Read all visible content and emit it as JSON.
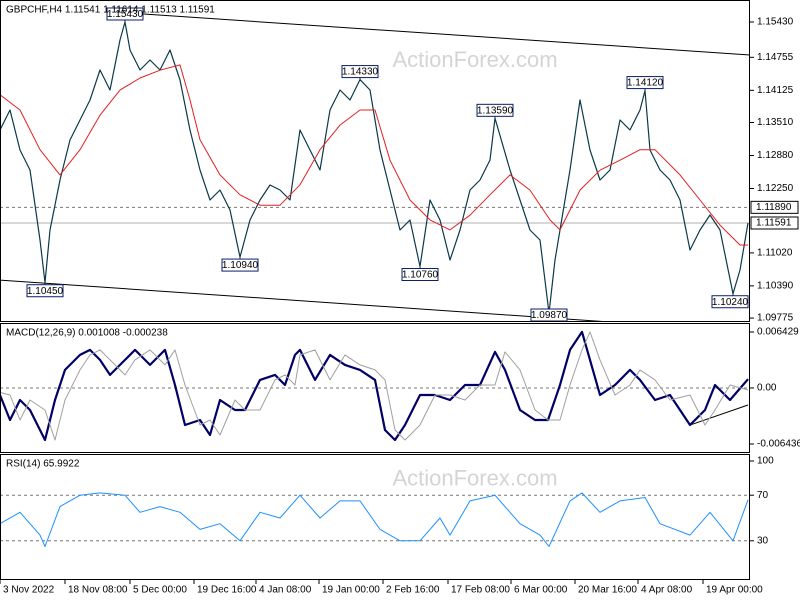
{
  "chart_data": [
    {
      "type": "line",
      "title": "GBPCHF,H4  1.11541 1.11614 1.11513 1.11591",
      "watermark": "ActionForex.com",
      "xlim": [
        0,
        750
      ],
      "ylim": [
        1.097,
        1.1585
      ],
      "yticks": [
        {
          "value": 1.1543,
          "label": "1.15430"
        },
        1.14755,
        1.14125,
        {
          "value": 1.1351,
          "label": "1.13510"
        },
        {
          "value": 1.1288,
          "label": "1.12880"
        },
        {
          "value": 1.1225,
          "label": "1.12250"
        },
        {
          "value": 1.1102,
          "label": "1.11020"
        },
        {
          "value": 1.1039,
          "label": "1.10390"
        },
        1.09775
      ],
      "series": [
        {
          "color": "#0b3a4a",
          "width": 1.2,
          "x": [
            0,
            10,
            20,
            30,
            40,
            45,
            50,
            60,
            70,
            80,
            90,
            100,
            110,
            120,
            125,
            130,
            140,
            150,
            160,
            170,
            180,
            190,
            200,
            210,
            220,
            230,
            240,
            250,
            260,
            270,
            280,
            290,
            300,
            310,
            320,
            330,
            340,
            350,
            360,
            370,
            380,
            390,
            400,
            410,
            420,
            430,
            440,
            450,
            460,
            470,
            480,
            490,
            495,
            510,
            520,
            530,
            540,
            549,
            555,
            560,
            570,
            580,
            590,
            600,
            610,
            620,
            630,
            640,
            645,
            650,
            660,
            670,
            680,
            690,
            700,
            710,
            720,
            733,
            740,
            748
          ],
          "values": [
            1.13367,
            1.13749,
            1.12985,
            1.12603,
            1.11266,
            1.1045,
            1.11457,
            1.12412,
            1.13176,
            1.13558,
            1.1394,
            1.14513,
            1.14131,
            1.15086,
            1.1543,
            1.14895,
            1.14513,
            1.14704,
            1.14513,
            1.14895,
            1.14322,
            1.13367,
            1.12603,
            1.1203,
            1.12222,
            1.11839,
            1.1094,
            1.11648,
            1.1203,
            1.12317,
            1.12222,
            1.1203,
            1.13367,
            1.12985,
            1.12603,
            1.13749,
            1.14131,
            1.1394,
            1.1433,
            1.14131,
            1.12985,
            1.12222,
            1.11457,
            1.11648,
            1.1076,
            1.1203,
            1.11648,
            1.10884,
            1.11457,
            1.12222,
            1.12412,
            1.12794,
            1.1359,
            1.12603,
            1.1203,
            1.11457,
            1.11266,
            1.0987,
            1.10884,
            1.11457,
            1.12603,
            1.1394,
            1.12985,
            1.12412,
            1.12603,
            1.13558,
            1.13367,
            1.13749,
            1.1412,
            1.12985,
            1.12603,
            1.12412,
            1.1203,
            1.11075,
            1.11457,
            1.11744,
            1.11457,
            1.1024,
            1.10693,
            1.11591
          ]
        },
        {
          "color": "#e02020",
          "width": 1,
          "x": [
            0,
            20,
            40,
            60,
            80,
            100,
            120,
            140,
            160,
            180,
            190,
            200,
            220,
            240,
            260,
            280,
            300,
            320,
            340,
            360,
            375,
            390,
            410,
            430,
            450,
            470,
            490,
            510,
            530,
            550,
            560,
            580,
            600,
            620,
            640,
            655,
            680,
            700,
            720,
            740,
            748
          ],
          "values": [
            1.1404,
            1.1375,
            1.1299,
            1.1251,
            1.1299,
            1.1365,
            1.1413,
            1.1436,
            1.1451,
            1.1461,
            1.1394,
            1.1318,
            1.1251,
            1.1213,
            1.1193,
            1.1193,
            1.1232,
            1.1299,
            1.1346,
            1.1375,
            1.1375,
            1.1279,
            1.1203,
            1.1165,
            1.1146,
            1.1174,
            1.1213,
            1.1251,
            1.1222,
            1.1165,
            1.1146,
            1.1222,
            1.126,
            1.1279,
            1.1299,
            1.1299,
            1.1251,
            1.1203,
            1.1155,
            1.1117,
            1.1117
          ]
        }
      ],
      "trendlines": [
        {
          "x": [
            115,
            750
          ],
          "values": [
            1.1562,
            1.148
          ]
        },
        {
          "x": [
            0,
            610
          ],
          "values": [
            1.105,
            1.097
          ]
        }
      ],
      "levels": [
        {
          "value": 1.1189,
          "label": "1.11890",
          "line": "dashed",
          "tag": true
        },
        {
          "value": 1.11591,
          "line": "solid",
          "tag": true
        }
      ],
      "annotations": [
        {
          "x": 125,
          "value": 1.1543,
          "label": "1.15430"
        },
        {
          "x": 45,
          "value": 1.1045,
          "label": "1.10450"
        },
        {
          "x": 240,
          "value": 1.1094,
          "label": "1.10940"
        },
        {
          "x": 360,
          "value": 1.1433,
          "label": "1.14330"
        },
        {
          "x": 420,
          "value": 1.1076,
          "label": "1.10760"
        },
        {
          "x": 495,
          "value": 1.1359,
          "label": "1.13590"
        },
        {
          "x": 549,
          "value": 1.0987,
          "label": "1.09870"
        },
        {
          "x": 645,
          "value": 1.1412,
          "label": "1.14120"
        },
        {
          "x": 733,
          "value": 1.1024,
          "label": "1.10240"
        }
      ]
    },
    {
      "type": "line",
      "title": "MACD(12,26,9) 0.001008 -0.000238",
      "xlim": [
        0,
        750
      ],
      "ylim": [
        -0.00747,
        0.00746
      ],
      "yticks": [
        0.006429,
        {
          "value": 0,
          "label": "0.00"
        },
        -0.006436
      ],
      "series": [
        {
          "color": "#000066",
          "width": 2.2,
          "x": [
            0,
            10,
            20,
            30,
            45,
            55,
            65,
            80,
            90,
            100,
            110,
            125,
            135,
            150,
            165,
            175,
            185,
            200,
            210,
            220,
            235,
            245,
            260,
            275,
            285,
            295,
            300,
            315,
            330,
            345,
            360,
            375,
            385,
            395,
            405,
            420,
            435,
            450,
            465,
            480,
            495,
            505,
            520,
            535,
            548,
            560,
            570,
            582,
            590,
            600,
            615,
            630,
            640,
            655,
            670,
            690,
            705,
            715,
            730,
            748
          ],
          "values": [
            -0.000805,
            -0.00368,
            -0.00138,
            -0.00253,
            -0.00598,
            -0.00138,
            0.00207,
            0.0038,
            0.00437,
            0.00322,
            0.0015,
            0.00322,
            0.00437,
            0.00265,
            0.00437,
            0.000345,
            -0.004255,
            -0.00368,
            -0.005405,
            -0.00138,
            -0.00253,
            -0.00253,
            0.00092,
            0.0015,
            0.000345,
            0.0038,
            0.00437,
            0.00092,
            0.0038,
            0.00265,
            0.00207,
            0.00092,
            -0.00483,
            -0.00598,
            -0.004255,
            -0.000805,
            -0.000805,
            -0.00138,
            0.000345,
            0.000345,
            0.00414,
            0.00207,
            -0.00253,
            -0.00368,
            -0.00368,
            0.000345,
            0.00437,
            0.00644,
            0.00322,
            -0.000805,
            0.000345,
            0.00207,
            0.00092,
            -0.00138,
            -0.000805,
            -0.004255,
            -0.00253,
            0.000345,
            -0.00138,
            0.001008
          ]
        },
        {
          "color": "#a0a0a0",
          "width": 1,
          "x": [
            0,
            10,
            20,
            30,
            45,
            55,
            65,
            80,
            90,
            100,
            110,
            125,
            135,
            150,
            165,
            175,
            185,
            200,
            210,
            220,
            235,
            245,
            260,
            275,
            285,
            295,
            300,
            315,
            330,
            345,
            360,
            375,
            385,
            395,
            405,
            420,
            435,
            450,
            465,
            480,
            495,
            505,
            520,
            535,
            548,
            560,
            570,
            582,
            590,
            600,
            615,
            630,
            640,
            655,
            670,
            690,
            705,
            715,
            730,
            748
          ],
          "values": [
            -0.0005,
            -0.000805,
            -0.00368,
            -0.00138,
            -0.00253,
            -0.00598,
            -0.00138,
            0.00207,
            0.0038,
            0.00437,
            0.00322,
            0.0015,
            0.00322,
            0.00437,
            0.00265,
            0.00437,
            0.000345,
            -0.004255,
            -0.00368,
            -0.005405,
            -0.00138,
            -0.00253,
            -0.00253,
            0.00092,
            0.0015,
            0.000345,
            0.0038,
            0.00437,
            0.00092,
            0.0038,
            0.00265,
            0.00207,
            0.00092,
            -0.00483,
            -0.00598,
            -0.004255,
            -0.000805,
            -0.000805,
            -0.00138,
            0.000345,
            0.000345,
            0.00414,
            0.00207,
            -0.00253,
            -0.00368,
            -0.00368,
            0.000345,
            0.00437,
            0.00644,
            0.00322,
            -0.000805,
            0.000345,
            0.00207,
            0.00092,
            -0.00138,
            -0.000805,
            -0.004255,
            -0.00253,
            0.000345,
            -0.000238
          ]
        }
      ],
      "trendlines": [
        {
          "x": [
            690,
            748
          ],
          "values": [
            -0.00426,
            -0.00196
          ]
        }
      ],
      "levels": [
        {
          "value": 0,
          "line": "dashed"
        }
      ]
    },
    {
      "type": "line",
      "title": "RSI(14) 65.9922",
      "watermark": "ActionForex.com",
      "xlim": [
        0,
        750
      ],
      "ylim": [
        0,
        100
      ],
      "yticks": [
        100,
        70,
        30
      ],
      "xticks": [
        {
          "value": 0,
          "label": "3 Nov 2022"
        },
        {
          "value": 65,
          "label": "18 Nov 08:00"
        },
        {
          "value": 130,
          "label": "5 Dec 00:00"
        },
        {
          "value": 194,
          "label": "19 Dec 16:00"
        },
        {
          "value": 256,
          "label": "4 Jan 08:00"
        },
        {
          "value": 319,
          "label": "19 Jan 00:00"
        },
        {
          "value": 383,
          "label": "2 Feb 16:00"
        },
        {
          "value": 448,
          "label": "17 Feb 08:00"
        },
        {
          "value": 511,
          "label": "6 Mar 00:00"
        },
        {
          "value": 575,
          "label": "20 Mar 16:00"
        },
        {
          "value": 638,
          "label": "4 Apr 08:00"
        },
        {
          "value": 703,
          "label": "19 Apr 00:00"
        }
      ],
      "series": [
        {
          "color": "#1e90ff",
          "width": 1,
          "x": [
            0,
            20,
            40,
            45,
            60,
            80,
            100,
            125,
            140,
            160,
            180,
            200,
            220,
            240,
            260,
            280,
            300,
            320,
            340,
            360,
            380,
            400,
            420,
            440,
            450,
            470,
            495,
            520,
            540,
            549,
            570,
            582,
            600,
            620,
            645,
            660,
            690,
            710,
            733,
            748
          ],
          "values": [
            45,
            55,
            35,
            25,
            60,
            70,
            72,
            70,
            55,
            60,
            55,
            40,
            45,
            30,
            55,
            50,
            70,
            50,
            65,
            65,
            40,
            30,
            30,
            50,
            35,
            65,
            70,
            45,
            35,
            25,
            65,
            72,
            55,
            65,
            68,
            45,
            35,
            55,
            30,
            65.9922
          ]
        }
      ],
      "levels": [
        {
          "value": 70,
          "line": "dashed"
        },
        {
          "value": 30,
          "line": "dashed"
        }
      ]
    }
  ]
}
